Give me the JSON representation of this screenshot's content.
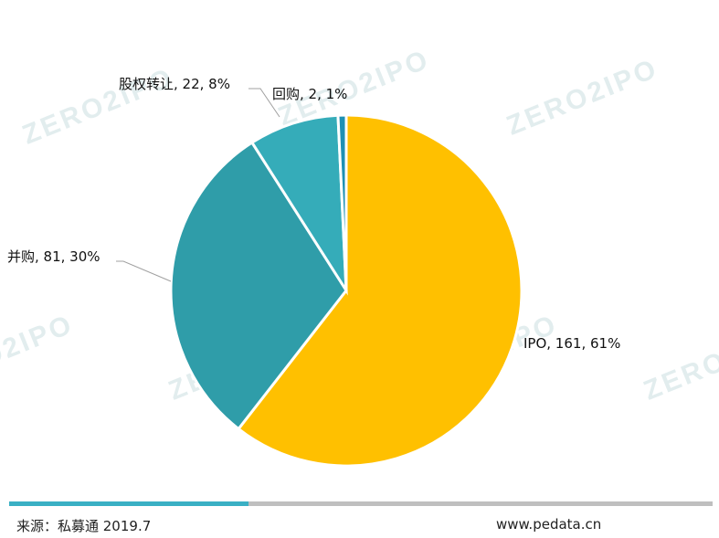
{
  "chart_data": {
    "type": "pie",
    "start_angle": "top",
    "direction": "clockwise",
    "slices": [
      {
        "label": "IPO",
        "value": 161,
        "percent": "61%",
        "color": "#FFC000"
      },
      {
        "label": "并购",
        "value": 81,
        "percent": "30%",
        "color": "#2F9DA9"
      },
      {
        "label": "股权转让",
        "value": 22,
        "percent": "8%",
        "color": "#35ACB9"
      },
      {
        "label": "回购",
        "value": 2,
        "percent": "1%",
        "color": "#1E90B4"
      }
    ],
    "data_labels": [
      "IPO, 161, 61%",
      "并购, 81, 30%",
      "股权转让, 22, 8%",
      "回购, 2, 1%"
    ]
  },
  "watermark": "ZERO2IPO",
  "footer": {
    "source": "来源：私募通 2019.7",
    "website": "www.pedata.cn",
    "bar_colors": {
      "accent": "#3AB0C4",
      "rest": "#BFBFBF"
    }
  }
}
